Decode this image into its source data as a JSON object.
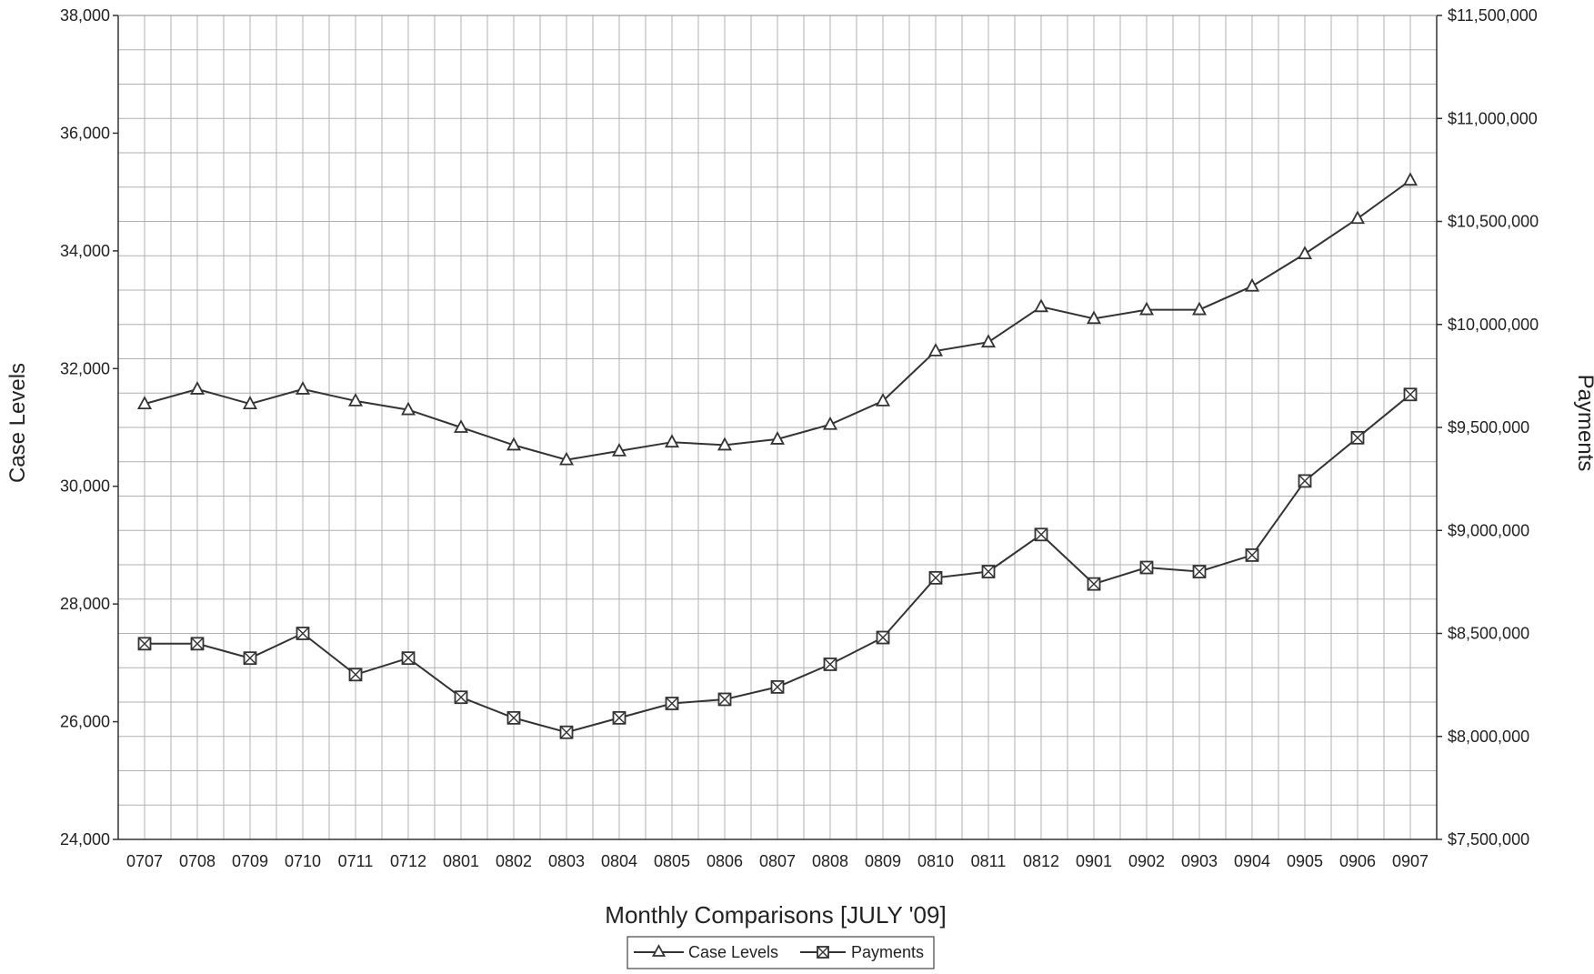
{
  "chart_data": {
    "type": "line",
    "title": "",
    "xlabel": "Monthly Comparisons [JULY '09]",
    "ylabel": "Case Levels",
    "y2label": "Payments",
    "categories": [
      "0707",
      "0708",
      "0709",
      "0710",
      "0711",
      "0712",
      "0801",
      "0802",
      "0803",
      "0804",
      "0805",
      "0806",
      "0807",
      "0808",
      "0809",
      "0810",
      "0811",
      "0812",
      "0901",
      "0902",
      "0903",
      "0904",
      "0905",
      "0906",
      "0907"
    ],
    "ylim": [
      24000,
      38000
    ],
    "y2lim": [
      7500000,
      11500000
    ],
    "yticks": [
      "24,000",
      "26,000",
      "28,000",
      "30,000",
      "32,000",
      "34,000",
      "36,000",
      "38,000"
    ],
    "y2ticks": [
      "$7,500,000",
      "$8,000,000",
      "$8,500,000",
      "$9,000,000",
      "$9,500,000",
      "$10,000,000",
      "$10,500,000",
      "$11,000,000",
      "$11,500,000"
    ],
    "grid": true,
    "legend_position": "bottom-center",
    "series": [
      {
        "name": "Case Levels",
        "axis": "left",
        "marker": "triangle",
        "values": [
          31400,
          31650,
          31400,
          31650,
          31450,
          31300,
          31000,
          30700,
          30450,
          30600,
          30750,
          30700,
          30800,
          31050,
          31450,
          32300,
          32450,
          33050,
          32850,
          33000,
          33000,
          33400,
          33950,
          34550,
          35200
        ]
      },
      {
        "name": "Payments",
        "axis": "right",
        "marker": "square",
        "values": [
          8450000,
          8450000,
          8380000,
          8500000,
          8300000,
          8380000,
          8190000,
          8090000,
          8020000,
          8090000,
          8160000,
          8180000,
          8240000,
          8350000,
          8480000,
          8770000,
          8800000,
          8980000,
          8740000,
          8820000,
          8800000,
          8880000,
          9240000,
          9450000,
          9660000
        ]
      }
    ]
  }
}
